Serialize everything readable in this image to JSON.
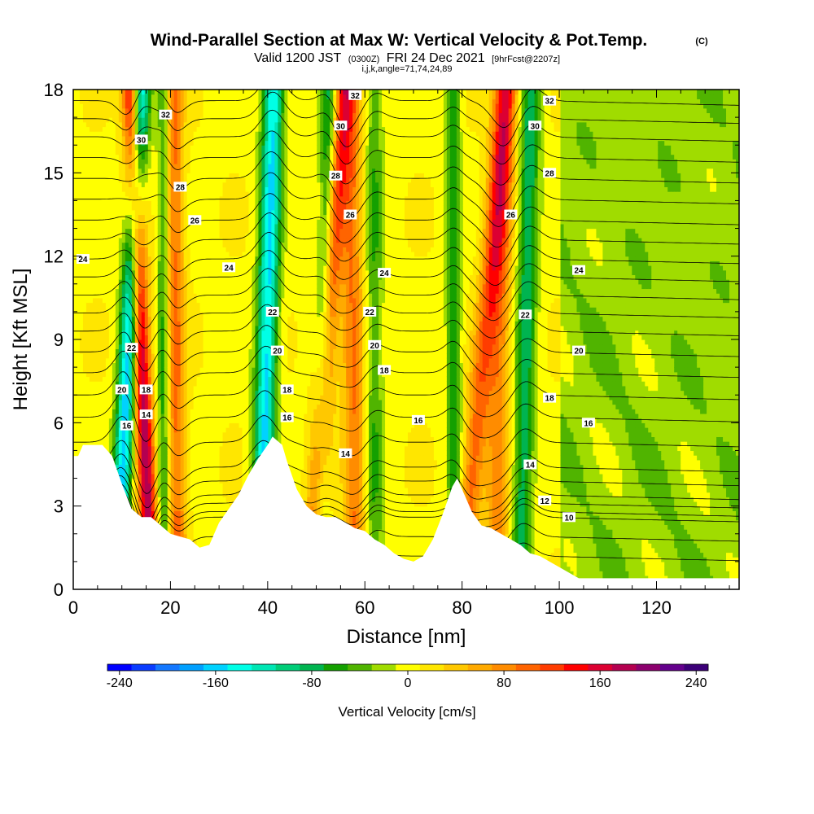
{
  "header": {
    "title": "Wind-Parallel Section at Max W: Vertical Velocity & Pot.Temp.",
    "title_unit": "(C)",
    "valid_prefix": "Valid 1200 JST",
    "valid_utc": "(0300Z)",
    "valid_date": "FRI 24 Dec 2021",
    "forecast": "[9hrFcst@2207z]",
    "indices": "i,j,k,angle=71,74,24,89"
  },
  "chart_data": {
    "type": "heatmap",
    "xlabel": "Distance [nm]",
    "ylabel": "Height [Kft MSL]",
    "xlim": [
      0,
      137
    ],
    "ylim": [
      0,
      18
    ],
    "xticks": [
      0,
      20,
      40,
      60,
      80,
      100,
      120
    ],
    "yticks": [
      0,
      3,
      6,
      9,
      12,
      15,
      18
    ],
    "colorbar": {
      "label": "Vertical Velocity [cm/s]",
      "range": [
        -250,
        250
      ],
      "tick_values": [
        -240,
        -160,
        -80,
        0,
        80,
        160,
        240
      ],
      "tick_labels": [
        "-240",
        "-160",
        "-80",
        "0",
        "80",
        "160",
        "240"
      ],
      "colors": [
        "#0000ff",
        "#0a3cff",
        "#1478ff",
        "#00a0ff",
        "#00d2ff",
        "#00ffe6",
        "#00e6b4",
        "#00cd78",
        "#00b450",
        "#14a000",
        "#50b400",
        "#a0dc00",
        "#ffff00",
        "#ffe600",
        "#ffc800",
        "#ffaa00",
        "#ff8c00",
        "#ff6400",
        "#ff3c00",
        "#ff0000",
        "#dc0032",
        "#b40050",
        "#8c006e",
        "#64008c",
        "#3c0078"
      ]
    },
    "terrain_kft": [
      [
        0,
        4.8
      ],
      [
        1,
        4.8
      ],
      [
        2,
        5.2
      ],
      [
        4,
        5.2
      ],
      [
        6,
        5.2
      ],
      [
        8,
        4.8
      ],
      [
        10,
        3.8
      ],
      [
        12,
        2.9
      ],
      [
        14,
        2.6
      ],
      [
        16,
        2.6
      ],
      [
        18,
        2.3
      ],
      [
        20,
        2.0
      ],
      [
        22,
        1.9
      ],
      [
        24,
        1.8
      ],
      [
        26,
        1.5
      ],
      [
        28,
        1.6
      ],
      [
        30,
        2.4
      ],
      [
        32,
        2.9
      ],
      [
        34,
        3.4
      ],
      [
        36,
        4.1
      ],
      [
        38,
        4.7
      ],
      [
        40,
        5.2
      ],
      [
        41,
        5.5
      ],
      [
        43,
        5.2
      ],
      [
        44,
        4.6
      ],
      [
        46,
        3.6
      ],
      [
        48,
        3.0
      ],
      [
        50,
        2.7
      ],
      [
        52,
        2.6
      ],
      [
        54,
        2.6
      ],
      [
        56,
        2.4
      ],
      [
        58,
        2.2
      ],
      [
        60,
        2.1
      ],
      [
        62,
        1.8
      ],
      [
        64,
        1.6
      ],
      [
        66,
        1.3
      ],
      [
        68,
        1.1
      ],
      [
        70,
        1.0
      ],
      [
        72,
        1.2
      ],
      [
        74,
        1.8
      ],
      [
        76,
        2.7
      ],
      [
        78,
        3.7
      ],
      [
        79,
        4.0
      ],
      [
        80,
        3.6
      ],
      [
        82,
        2.8
      ],
      [
        84,
        2.3
      ],
      [
        86,
        2.2
      ],
      [
        88,
        2.0
      ],
      [
        90,
        1.8
      ],
      [
        92,
        1.6
      ],
      [
        94,
        1.3
      ],
      [
        96,
        1.2
      ],
      [
        100,
        0.8
      ],
      [
        104,
        0.4
      ],
      [
        137,
        0.4
      ]
    ],
    "updraft_bands": [
      {
        "x0_nm": 16.0,
        "tilt_nm_per_kft": -0.23,
        "half_width_nm": 1.8,
        "peak_cms": 175
      },
      {
        "x0_nm": 21.5,
        "tilt_nm_per_kft": -0.05,
        "half_width_nm": 1.9,
        "peak_cms": 90
      },
      {
        "x0_nm": 49.0,
        "tilt_nm_per_kft": 0.37,
        "half_width_nm": 2.0,
        "peak_cms": 110
      },
      {
        "x0_nm": 58.0,
        "tilt_nm_per_kft": -0.05,
        "half_width_nm": 2.2,
        "peak_cms": 85
      },
      {
        "x0_nm": 80.0,
        "tilt_nm_per_kft": 0.52,
        "half_width_nm": 2.3,
        "peak_cms": 95
      },
      {
        "x0_nm": 87.0,
        "tilt_nm_per_kft": 0.08,
        "half_width_nm": 2.4,
        "peak_cms": 75
      }
    ],
    "downdraft_bands": [
      {
        "x0_nm": 9.0,
        "tilt_nm_per_kft": 0.27,
        "half_width_nm": 1.9,
        "peak_cms": -170
      },
      {
        "x0_nm": 18.5,
        "tilt_nm_per_kft": 0.01,
        "half_width_nm": 1.3,
        "peak_cms": -70
      },
      {
        "x0_nm": 38.5,
        "tilt_nm_per_kft": 0.15,
        "half_width_nm": 2.1,
        "peak_cms": -160
      },
      {
        "x0_nm": 50.5,
        "tilt_nm_per_kft": 0.12,
        "half_width_nm": 1.6,
        "peak_cms": -80
      },
      {
        "x0_nm": 62.0,
        "tilt_nm_per_kft": 0.0,
        "half_width_nm": 1.8,
        "peak_cms": -55
      },
      {
        "x0_nm": 78.5,
        "tilt_nm_per_kft": -0.02,
        "half_width_nm": 1.5,
        "peak_cms": -70
      },
      {
        "x0_nm": 92.0,
        "tilt_nm_per_kft": 0.12,
        "half_width_nm": 2.1,
        "peak_cms": -90
      }
    ],
    "theta_contours": [
      {
        "value": 10,
        "base_kft": 2.8
      },
      {
        "value": 12,
        "base_kft": 3.4
      },
      {
        "value": 14,
        "base_kft": 4.4
      },
      {
        "value": 16,
        "base_kft": 6.2
      },
      {
        "value": 18,
        "base_kft": 7.8
      },
      {
        "value": 20,
        "base_kft": 9.3
      },
      {
        "value": 22,
        "base_kft": 10.6
      },
      {
        "value": 24,
        "base_kft": 11.9
      },
      {
        "value": 26,
        "base_kft": 13.3
      },
      {
        "value": 28,
        "base_kft": 14.8
      },
      {
        "value": 30,
        "base_kft": 16.3
      },
      {
        "value": 32,
        "base_kft": 17.6
      }
    ],
    "contour_labels": [
      {
        "text": "32",
        "x_nm": 58,
        "y_kft": 17.8
      },
      {
        "text": "32",
        "x_nm": 98,
        "y_kft": 17.6
      },
      {
        "text": "32",
        "x_nm": 19,
        "y_kft": 17.1
      },
      {
        "text": "30",
        "x_nm": 14,
        "y_kft": 16.2
      },
      {
        "text": "30",
        "x_nm": 55,
        "y_kft": 16.7
      },
      {
        "text": "30",
        "x_nm": 95,
        "y_kft": 16.7
      },
      {
        "text": "28",
        "x_nm": 22,
        "y_kft": 14.5
      },
      {
        "text": "28",
        "x_nm": 54,
        "y_kft": 14.9
      },
      {
        "text": "28",
        "x_nm": 98,
        "y_kft": 15.0
      },
      {
        "text": "26",
        "x_nm": 25,
        "y_kft": 13.3
      },
      {
        "text": "26",
        "x_nm": 57,
        "y_kft": 13.5
      },
      {
        "text": "26",
        "x_nm": 90,
        "y_kft": 13.5
      },
      {
        "text": "24",
        "x_nm": 2,
        "y_kft": 11.9
      },
      {
        "text": "24",
        "x_nm": 32,
        "y_kft": 11.6
      },
      {
        "text": "24",
        "x_nm": 64,
        "y_kft": 11.4
      },
      {
        "text": "24",
        "x_nm": 104,
        "y_kft": 11.5
      },
      {
        "text": "22",
        "x_nm": 41,
        "y_kft": 10.0
      },
      {
        "text": "22",
        "x_nm": 61,
        "y_kft": 10.0
      },
      {
        "text": "22",
        "x_nm": 93,
        "y_kft": 9.9
      },
      {
        "text": "22",
        "x_nm": 12,
        "y_kft": 8.7
      },
      {
        "text": "20",
        "x_nm": 42,
        "y_kft": 8.6
      },
      {
        "text": "20",
        "x_nm": 62,
        "y_kft": 8.8
      },
      {
        "text": "20",
        "x_nm": 104,
        "y_kft": 8.6
      },
      {
        "text": "20",
        "x_nm": 10,
        "y_kft": 7.2
      },
      {
        "text": "18",
        "x_nm": 64,
        "y_kft": 7.9
      },
      {
        "text": "18",
        "x_nm": 44,
        "y_kft": 7.2
      },
      {
        "text": "18",
        "x_nm": 15,
        "y_kft": 7.2
      },
      {
        "text": "18",
        "x_nm": 98,
        "y_kft": 6.9
      },
      {
        "text": "16",
        "x_nm": 44,
        "y_kft": 6.2
      },
      {
        "text": "16",
        "x_nm": 71,
        "y_kft": 6.1
      },
      {
        "text": "16",
        "x_nm": 106,
        "y_kft": 6.0
      },
      {
        "text": "14",
        "x_nm": 15,
        "y_kft": 6.3
      },
      {
        "text": "16",
        "x_nm": 11,
        "y_kft": 5.9
      },
      {
        "text": "14",
        "x_nm": 56,
        "y_kft": 4.9
      },
      {
        "text": "14",
        "x_nm": 94,
        "y_kft": 4.5
      },
      {
        "text": "12",
        "x_nm": 97,
        "y_kft": 3.2
      },
      {
        "text": "10",
        "x_nm": 102,
        "y_kft": 2.6
      }
    ]
  }
}
